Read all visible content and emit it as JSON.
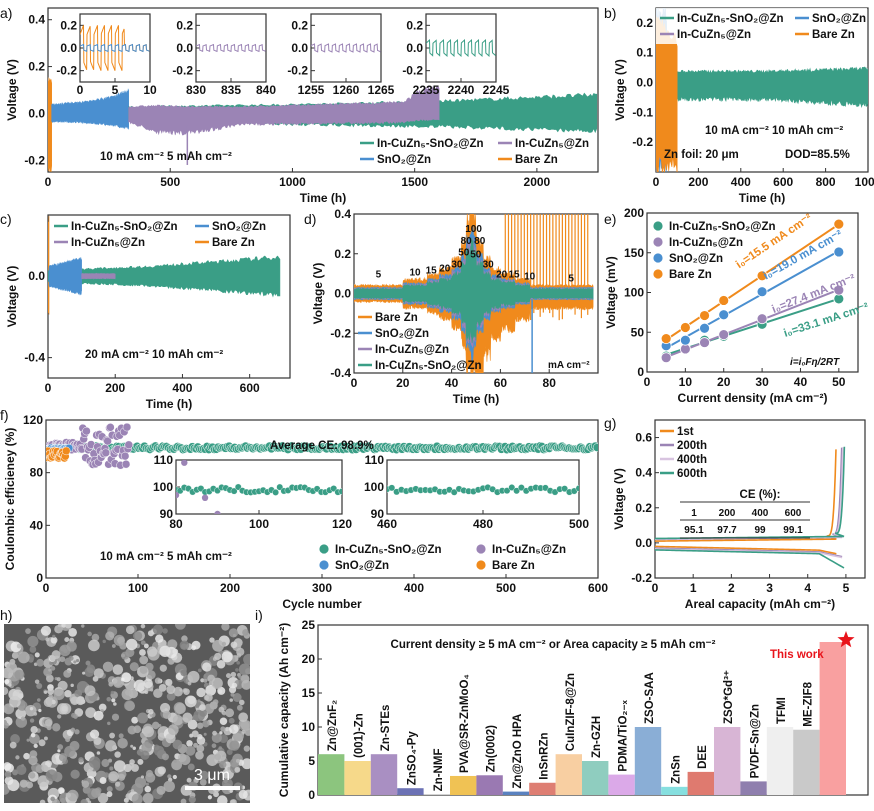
{
  "colors": {
    "In-CuZn5-SnO2@Zn": "#3a9e86",
    "In-CuZn5@Zn": "#9b84b5",
    "SnO2@Zn": "#4a8fd0",
    "Bare Zn": "#f08a1c",
    "accent": "#e8141b"
  },
  "legend_labels": {
    "green": "In-CuZn₅-SnO₂@Zn",
    "purple": "In-CuZn₅@Zn",
    "blue": "SnO₂@Zn",
    "orange": "Bare Zn"
  },
  "chart_data": [
    {
      "panel": "a)",
      "type": "line",
      "xlabel": "Time (h)",
      "ylabel": "Voltage (V)",
      "xlim": [
        0,
        2250
      ],
      "ylim": [
        -0.25,
        0.45
      ],
      "xticks": [
        0,
        500,
        1000,
        1500,
        2000
      ],
      "yticks": [
        -0.2,
        0.0,
        0.2,
        0.4
      ],
      "annotation": "10 mA cm⁻² 5 mAh cm⁻²",
      "legend": "bottom-right",
      "series": [
        {
          "key": "orange",
          "envelope": [
            [
              0,
              0.15,
              -0.25
            ],
            [
              15,
              0.15,
              -0.25
            ]
          ]
        },
        {
          "key": "blue",
          "envelope": [
            [
              15,
              0.04,
              -0.035
            ],
            [
              150,
              0.05,
              -0.04
            ],
            [
              250,
              0.07,
              -0.05
            ],
            [
              330,
              0.1,
              -0.065
            ]
          ]
        },
        {
          "key": "green",
          "envelope": [
            [
              330,
              0.03,
              -0.03
            ],
            [
              1000,
              0.04,
              -0.05
            ],
            [
              1600,
              0.055,
              -0.06
            ],
            [
              2245,
              0.085,
              -0.08
            ]
          ]
        },
        {
          "key": "purple",
          "envelope": [
            [
              330,
              0.03,
              -0.04
            ],
            [
              450,
              0.035,
              -0.085
            ],
            [
              570,
              0.03,
              -0.09
            ],
            [
              800,
              0.03,
              -0.05
            ],
            [
              1450,
              0.05,
              -0.04
            ],
            [
              1520,
              0.1,
              -0.03
            ],
            [
              1600,
              0.12,
              -0.03
            ]
          ]
        }
      ],
      "insets": [
        {
          "xlim": [
            0,
            10
          ],
          "xticks": [
            0,
            5,
            10
          ],
          "yticks": [
            -0.2,
            0.0,
            0.2
          ],
          "series": [
            {
              "key": "orange",
              "amplitude": 0.2,
              "until": 6.3,
              "after_amplitude": 0.03
            },
            {
              "key": "blue",
              "amplitude": 0.03
            }
          ]
        },
        {
          "xlim": [
            830,
            840
          ],
          "xticks": [
            830,
            835,
            840
          ],
          "yticks": [
            -0.2,
            0.0,
            0.2
          ],
          "series": [
            {
              "key": "purple",
              "amplitude": 0.03
            }
          ]
        },
        {
          "xlim": [
            1255,
            1265
          ],
          "xticks": [
            1255,
            1260,
            1265
          ],
          "yticks": [
            -0.2,
            0.0,
            0.2
          ],
          "series": [
            {
              "key": "purple",
              "amplitude": 0.035
            }
          ]
        },
        {
          "xlim": [
            2235,
            2245
          ],
          "xticks": [
            2235,
            2240,
            2245
          ],
          "yticks": [
            -0.2,
            0.0,
            0.2
          ],
          "series": [
            {
              "key": "green",
              "amplitude": 0.07
            }
          ]
        }
      ]
    },
    {
      "panel": "b)",
      "type": "line",
      "xlabel": "Time (h)",
      "ylabel": "Voltage (V)",
      "xlim": [
        0,
        1000
      ],
      "ylim": [
        -0.3,
        0.25
      ],
      "xticks": [
        0,
        200,
        400,
        600,
        800,
        1000
      ],
      "yticks": [
        -0.2,
        -0.1,
        0.0,
        0.1,
        0.2
      ],
      "annotations": [
        "10 mA cm⁻² 10 mAh cm⁻²",
        "Zn foil: 20 μm",
        "DOD=85.5%"
      ],
      "legend": "top",
      "series": [
        {
          "key": "green",
          "envelope": [
            [
              0,
              0.25,
              -0.3
            ],
            [
              20,
              0.1,
              -0.15
            ],
            [
              60,
              0.04,
              -0.06
            ],
            [
              500,
              0.04,
              -0.06
            ],
            [
              1000,
              0.05,
              -0.08
            ]
          ]
        },
        {
          "key": "blue",
          "envelope": [
            [
              0,
              0.25,
              -0.3
            ],
            [
              50,
              0.25,
              -0.3
            ]
          ]
        },
        {
          "key": "purple",
          "envelope": [
            [
              0,
              0.2,
              -0.25
            ],
            [
              40,
              0.2,
              -0.25
            ]
          ]
        },
        {
          "key": "orange",
          "envelope": [
            [
              0,
              0.25,
              -0.3
            ],
            [
              100,
              0.15,
              -0.3
            ]
          ]
        }
      ]
    },
    {
      "panel": "c)",
      "type": "line",
      "xlabel": "Time (h)",
      "ylabel": "Voltage (V)",
      "xlim": [
        0,
        720
      ],
      "ylim": [
        -0.5,
        0.3
      ],
      "xticks": [
        0,
        200,
        400,
        600
      ],
      "yticks": [
        -0.4,
        0.0
      ],
      "annotation": "20 mA cm⁻² 10 mAh cm⁻²",
      "legend": "top",
      "series": [
        {
          "key": "orange",
          "envelope": [
            [
              0,
              0.3,
              -0.2
            ],
            [
              3,
              0.3,
              -0.2
            ]
          ]
        },
        {
          "key": "green",
          "envelope": [
            [
              0,
              0.03,
              -0.03
            ],
            [
              300,
              0.05,
              -0.05
            ],
            [
              690,
              0.1,
              -0.1
            ]
          ]
        },
        {
          "key": "blue",
          "envelope": [
            [
              3,
              0.05,
              -0.05
            ],
            [
              100,
              0.09,
              -0.09
            ]
          ]
        },
        {
          "key": "purple",
          "envelope": [
            [
              100,
              0.012,
              -0.012
            ],
            [
              200,
              0.012,
              -0.012
            ]
          ]
        }
      ]
    },
    {
      "panel": "d)",
      "type": "line",
      "xlabel": "Time (h)",
      "ylabel": "Voltage (V)",
      "xlim": [
        0,
        100
      ],
      "ylim": [
        -0.4,
        0.4
      ],
      "xticks": [
        0,
        20,
        40,
        60,
        80
      ],
      "yticks": [
        -0.4,
        -0.2,
        0.0,
        0.2,
        0.4
      ],
      "unit_label": "mA cm⁻²",
      "legend": "bottom-left",
      "rate_steps": [
        [
          0,
          20,
          5
        ],
        [
          20,
          30,
          10
        ],
        [
          30,
          35,
          15
        ],
        [
          35,
          40,
          20
        ],
        [
          40,
          44,
          30
        ],
        [
          44,
          46,
          50
        ],
        [
          46,
          48,
          80
        ],
        [
          48,
          49,
          100
        ],
        [
          49,
          50,
          80
        ],
        [
          50,
          53,
          50
        ],
        [
          53,
          56,
          30
        ],
        [
          56,
          60,
          20
        ],
        [
          60,
          66,
          15
        ],
        [
          66,
          72,
          10
        ],
        [
          72,
          98,
          5
        ]
      ],
      "rate_labels": [
        {
          "t": 10,
          "v": 0.08,
          "text": "5"
        },
        {
          "t": 25,
          "v": 0.09,
          "text": "10"
        },
        {
          "t": 33,
          "v": 0.1,
          "text": "15"
        },
        {
          "t": 37,
          "v": 0.11,
          "text": "20"
        },
        {
          "t": 41,
          "v": 0.13,
          "text": "30"
        },
        {
          "t": 45,
          "v": 0.19,
          "text": "50"
        },
        {
          "t": 46.5,
          "v": 0.25,
          "text": "80"
        },
        {
          "t": 49,
          "v": 0.31,
          "text": "100"
        },
        {
          "t": 51,
          "v": 0.25,
          "text": "80"
        },
        {
          "t": 53,
          "v": 0.18,
          "text": "50"
        },
        {
          "t": 55,
          "v": 0.13,
          "text": "30"
        },
        {
          "t": 59,
          "v": 0.08,
          "text": "20"
        },
        {
          "t": 64,
          "v": 0.08,
          "text": "15"
        },
        {
          "t": 72,
          "v": 0.07,
          "text": "10"
        },
        {
          "t": 89,
          "v": 0.06,
          "text": "5"
        }
      ],
      "series": [
        {
          "key": "orange",
          "scale": 0.012
        },
        {
          "key": "blue",
          "scale": 0.0085
        },
        {
          "key": "purple",
          "scale": 0.0075
        },
        {
          "key": "green",
          "scale": 0.0068
        }
      ]
    },
    {
      "panel": "e)",
      "type": "scatter",
      "xlabel": "Current density (mA cm⁻²)",
      "ylabel": "Voltage (mV)",
      "xlim": [
        0,
        55
      ],
      "ylim": [
        0,
        200
      ],
      "xticks": [
        0,
        10,
        20,
        30,
        40,
        50
      ],
      "yticks": [
        0,
        50,
        100,
        150,
        200
      ],
      "equation": "i=i₀Fη/2RT",
      "legend": "top-left",
      "x": [
        5,
        10,
        15,
        20,
        30,
        50
      ],
      "series": [
        {
          "key": "green",
          "values": [
            20,
            30,
            40,
            45,
            60,
            92
          ],
          "fit_label": "i₀=33.1 mA cm⁻²"
        },
        {
          "key": "purple",
          "values": [
            18,
            29,
            37,
            47,
            67,
            103
          ],
          "fit_label": "i₀=27.4 mA cm⁻²"
        },
        {
          "key": "blue",
          "values": [
            33,
            40,
            55,
            72,
            101,
            151
          ],
          "fit_label": "i₀=19.0 mA cm⁻²"
        },
        {
          "key": "orange",
          "values": [
            42,
            56,
            71,
            90,
            121,
            186
          ],
          "fit_label": "i₀=15.5 mA cm⁻²"
        }
      ]
    },
    {
      "panel": "f)",
      "type": "scatter",
      "xlabel": "Cycle number",
      "ylabel": "Coulombic efficieney (%)",
      "xlim": [
        0,
        600
      ],
      "ylim": [
        0,
        120
      ],
      "xticks": [
        0,
        100,
        200,
        300,
        400,
        500,
        600
      ],
      "yticks": [
        0,
        40,
        80,
        120
      ],
      "annotation": "Average CE: 98.9%",
      "conditions": "10 mA cm⁻² 5 mAh cm⁻²",
      "legend": "bottom-right",
      "series": [
        {
          "key": "green",
          "cycles": [
            1,
            600
          ],
          "ce_mean": 98.9,
          "ce_spread": 1.5
        },
        {
          "key": "purple",
          "cycles": [
            1,
            90
          ],
          "ce_mean": 100,
          "ce_spread": 15
        },
        {
          "key": "blue",
          "cycles": [
            1,
            25
          ],
          "ce_mean": 98,
          "ce_spread": 1
        },
        {
          "key": "orange",
          "cycles": [
            1,
            22
          ],
          "ce_mean": 94,
          "ce_spread": 3
        }
      ],
      "insets": [
        {
          "xlim": [
            80,
            120
          ],
          "xticks": [
            80,
            100,
            120
          ],
          "ylim": [
            90,
            110
          ],
          "yticks": [
            90,
            100,
            110
          ]
        },
        {
          "xlim": [
            460,
            500
          ],
          "xticks": [
            460,
            480,
            500
          ],
          "ylim": [
            90,
            110
          ],
          "yticks": [
            90,
            100,
            110
          ]
        }
      ]
    },
    {
      "panel": "g)",
      "type": "line",
      "xlabel": "Areal capacity (mAh cm⁻²)",
      "ylabel": "Voltage (V)",
      "xlim": [
        0,
        5.5
      ],
      "ylim": [
        -0.2,
        0.7
      ],
      "xticks": [
        0,
        1,
        2,
        3,
        4,
        5
      ],
      "yticks": [
        -0.2,
        0.0,
        0.2,
        0.4,
        0.6
      ],
      "legend": "top-left",
      "series": [
        {
          "name": "1st",
          "color": "#f08a1c",
          "stripping": 0.01,
          "plating": -0.02,
          "end": 4.75
        },
        {
          "name": "200th",
          "color": "#9b84b5",
          "stripping": 0.02,
          "plating": -0.03,
          "end": 4.9
        },
        {
          "name": "400th",
          "color": "#d8c4e0",
          "stripping": 0.022,
          "plating": -0.035,
          "end": 4.93
        },
        {
          "name": "600th",
          "color": "#3a9e86",
          "stripping": 0.025,
          "plating": -0.04,
          "end": 4.97
        }
      ],
      "table": {
        "title": "CE (%):",
        "header": [
          "1",
          "200",
          "400",
          "600"
        ],
        "values": [
          "95.1",
          "97.7",
          "99",
          "99.1"
        ]
      }
    },
    {
      "panel": "i)",
      "type": "bar",
      "ylabel": "Cumulative capacity (Ah cm⁻²)",
      "ylim": [
        0,
        25
      ],
      "yticks": [
        0,
        5,
        10,
        15,
        20,
        25
      ],
      "title": "Current density ≥ 5 mA cm⁻² or Area capacity ≥ 5 mAh cm⁻²",
      "highlight": "This work",
      "categories": [
        "Zn@ZnF₂",
        "(001)-Zn",
        "Zn-STEs",
        "ZnSO₄-Py",
        "Zn-NMF",
        "PVA@SR-ZnMoO₄",
        "Zn(0002)",
        "Zn@ZnO HPA",
        "InSnRZn",
        "CuInZIF-8@Zn",
        "Zn-GZH",
        "PDMA/TiO₂₋ₓ",
        "ZSO-SAA",
        "ZnSn",
        "DEE",
        "ZSO*Gd³⁺",
        "PVDF-Sn@Zn",
        "TFMI",
        "ME-ZIF8",
        ""
      ],
      "values": [
        6,
        5,
        6,
        1,
        0.1,
        2.8,
        2.9,
        0.5,
        1.8,
        6,
        5,
        3,
        10,
        1.2,
        3.4,
        10,
        2,
        10,
        9.6,
        22.5
      ],
      "bar_colors": [
        "#8cc57e",
        "#f6d98a",
        "#a98fc2",
        "#6c72b5",
        "#d0d0d0",
        "#f0c254",
        "#9a79b2",
        "#5a82c0",
        "#de7e73",
        "#f8cfa2",
        "#8fcdbf",
        "#dba9e8",
        "#8aaed6",
        "#86dfdf",
        "#df7a6f",
        "#d8b5d5",
        "#8f7fae",
        "#efefef",
        "#c9c9c9",
        "#f9a0a0"
      ]
    },
    {
      "panel": "h)",
      "type": "image",
      "scale_bar": "3 μm"
    }
  ]
}
